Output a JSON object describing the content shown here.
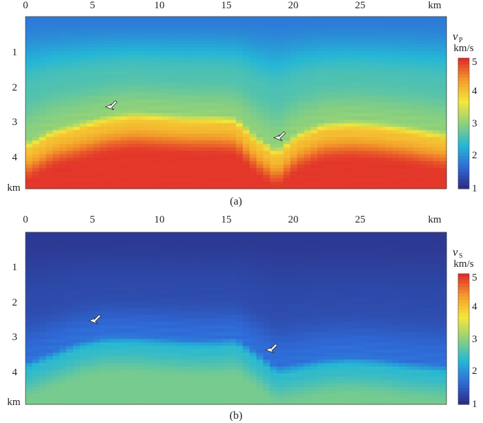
{
  "chart_data": [
    {
      "type": "heatmap",
      "panel_label": "(a)",
      "quantity": "v",
      "quantity_subscript": "P",
      "unit": "km/s",
      "x_unit": "km",
      "y_unit": "km",
      "xlim": [
        0,
        31
      ],
      "ylim": [
        0,
        5
      ],
      "x_ticks": [
        0,
        5,
        10,
        15,
        20,
        25
      ],
      "y_ticks": [
        1,
        2,
        3,
        4
      ],
      "colorbar_range": [
        1,
        5
      ],
      "colorbar_ticks": [
        1,
        2,
        3,
        4,
        5
      ],
      "colormap": [
        "#2c2a7e",
        "#2f6bd8",
        "#25b7d6",
        "#8fd17a",
        "#f5e73a",
        "#f39a2a",
        "#e0262a"
      ],
      "interface_depth_km": [
        {
          "x": 0,
          "depth": 3.6
        },
        {
          "x": 2,
          "depth": 3.2
        },
        {
          "x": 4,
          "depth": 3.0
        },
        {
          "x": 6,
          "depth": 2.8
        },
        {
          "x": 8,
          "depth": 2.7
        },
        {
          "x": 10,
          "depth": 2.75
        },
        {
          "x": 12,
          "depth": 2.8
        },
        {
          "x": 14,
          "depth": 2.8
        },
        {
          "x": 15.5,
          "depth": 2.85
        },
        {
          "x": 17,
          "depth": 3.4
        },
        {
          "x": 18.5,
          "depth": 3.8
        },
        {
          "x": 20,
          "depth": 3.3
        },
        {
          "x": 22,
          "depth": 3.0
        },
        {
          "x": 24,
          "depth": 2.95
        },
        {
          "x": 26,
          "depth": 3.0
        },
        {
          "x": 28,
          "depth": 3.1
        },
        {
          "x": 31,
          "depth": 3.3
        }
      ],
      "velocity_profile": {
        "top": 1.8,
        "upper": 2.6,
        "above_interface": 3.0,
        "transition": 4.0,
        "deep": 4.9
      },
      "arrows": [
        {
          "x": 6.2,
          "y": 2.5
        },
        {
          "x": 18.6,
          "y": 3.4
        }
      ]
    },
    {
      "type": "heatmap",
      "panel_label": "(b)",
      "quantity": "v",
      "quantity_subscript": "S",
      "unit": "km/s",
      "x_unit": "km",
      "y_unit": "km",
      "xlim": [
        0,
        31
      ],
      "ylim": [
        0,
        5
      ],
      "x_ticks": [
        0,
        5,
        10,
        15,
        20,
        25
      ],
      "y_ticks": [
        1,
        2,
        3,
        4
      ],
      "colorbar_range": [
        1,
        5
      ],
      "colorbar_ticks": [
        1,
        2,
        3,
        4,
        5
      ],
      "colormap": [
        "#2c2a7e",
        "#2f6bd8",
        "#25b7d6",
        "#8fd17a",
        "#f5e73a",
        "#f39a2a",
        "#e0262a"
      ],
      "interface_depth_km": [
        {
          "x": 0,
          "depth": 3.7
        },
        {
          "x": 2,
          "depth": 3.4
        },
        {
          "x": 4,
          "depth": 3.1
        },
        {
          "x": 6,
          "depth": 2.95
        },
        {
          "x": 8,
          "depth": 2.95
        },
        {
          "x": 10,
          "depth": 3.0
        },
        {
          "x": 12,
          "depth": 3.05
        },
        {
          "x": 14,
          "depth": 3.05
        },
        {
          "x": 15.5,
          "depth": 3.0
        },
        {
          "x": 17,
          "depth": 3.4
        },
        {
          "x": 18.5,
          "depth": 3.85
        },
        {
          "x": 20,
          "depth": 3.75
        },
        {
          "x": 22,
          "depth": 3.6
        },
        {
          "x": 24,
          "depth": 3.55
        },
        {
          "x": 26,
          "depth": 3.6
        },
        {
          "x": 28,
          "depth": 3.7
        },
        {
          "x": 31,
          "depth": 3.8
        }
      ],
      "velocity_profile": {
        "top": 1.15,
        "upper": 1.35,
        "above_interface": 1.7,
        "transition": 2.4,
        "deep": 2.85
      },
      "arrows": [
        {
          "x": 5.0,
          "y": 2.45
        },
        {
          "x": 18.0,
          "y": 3.3
        }
      ]
    }
  ]
}
